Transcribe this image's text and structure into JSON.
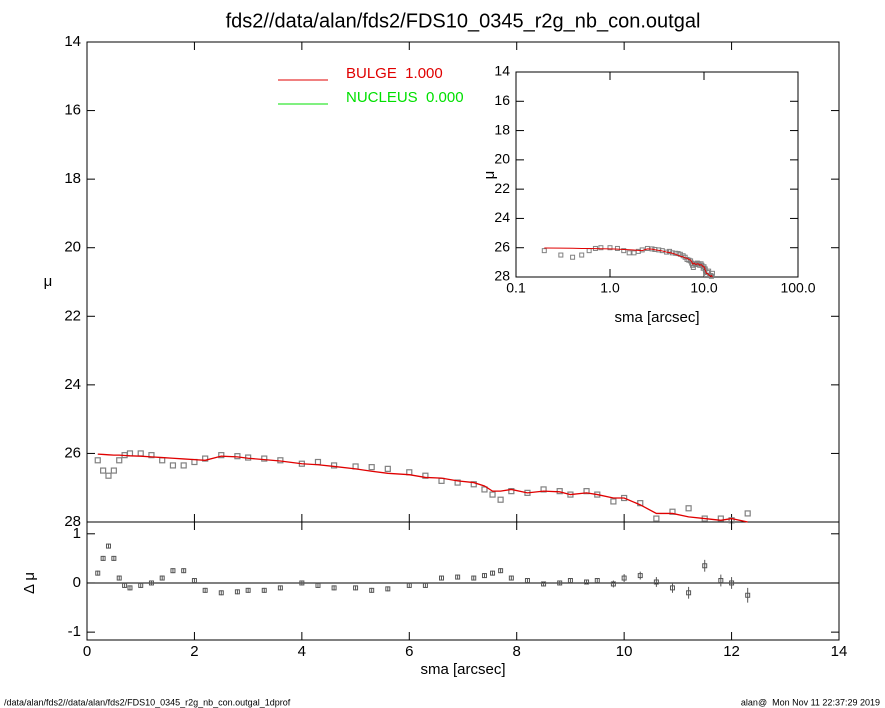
{
  "chart_data": [
    {
      "type": "scatter",
      "title": "fds2//data/alan/fds2/FDS10_0345_r2g_nb_con.outgal",
      "ylabel": "μ",
      "xlim": [
        0,
        14
      ],
      "xticks": [
        0,
        2,
        4,
        6,
        8,
        10,
        12,
        14
      ],
      "ylim": [
        28,
        14
      ],
      "yticks": [
        14,
        16,
        18,
        20,
        22,
        24,
        26,
        28
      ],
      "x": [
        0.2,
        0.3,
        0.4,
        0.5,
        0.6,
        0.7,
        0.8,
        1.0,
        1.2,
        1.4,
        1.6,
        1.8,
        2.0,
        2.2,
        2.5,
        2.8,
        3.0,
        3.3,
        3.6,
        4.0,
        4.3,
        4.6,
        5.0,
        5.3,
        5.6,
        6.0,
        6.3,
        6.6,
        6.9,
        7.2,
        7.4,
        7.55,
        7.7,
        7.9,
        8.2,
        8.5,
        8.8,
        9.0,
        9.3,
        9.5,
        9.8,
        10.0,
        10.3,
        10.6,
        10.9,
        11.2,
        11.5,
        11.8,
        12.0,
        12.3
      ],
      "points": {
        "color": "#808080",
        "values": [
          26.2,
          26.5,
          26.65,
          26.5,
          26.2,
          26.05,
          26.0,
          26.0,
          26.05,
          26.2,
          26.35,
          26.35,
          26.25,
          26.15,
          26.05,
          26.08,
          26.12,
          26.15,
          26.2,
          26.3,
          26.25,
          26.35,
          26.38,
          26.4,
          26.45,
          26.55,
          26.65,
          26.8,
          26.85,
          26.9,
          27.05,
          27.2,
          27.35,
          27.1,
          27.15,
          27.05,
          27.1,
          27.2,
          27.1,
          27.2,
          27.4,
          27.3,
          27.45,
          27.9,
          27.7,
          27.6,
          27.9,
          27.9,
          27.95,
          27.75
        ]
      },
      "series": [
        {
          "name": "BULGE  1.000",
          "color": "#e00000",
          "values": [
            26.02,
            26.03,
            26.04,
            26.05,
            26.05,
            26.06,
            26.07,
            26.08,
            26.1,
            26.12,
            26.14,
            26.16,
            26.18,
            26.2,
            26.08,
            26.1,
            26.14,
            26.18,
            26.22,
            26.3,
            26.33,
            26.38,
            26.45,
            26.52,
            26.58,
            26.62,
            26.7,
            26.72,
            26.8,
            26.85,
            26.95,
            27.1,
            27.1,
            27.05,
            27.15,
            27.1,
            27.12,
            27.2,
            27.15,
            27.2,
            27.3,
            27.3,
            27.5,
            27.75,
            27.75,
            27.85,
            27.9,
            27.95,
            27.9,
            28.0
          ]
        },
        {
          "name": "NUCLEUS  0.000",
          "color": "#00e000"
        }
      ]
    },
    {
      "type": "errorbar",
      "ylabel": "Δ μ",
      "xlabel": "sma [arcsec]",
      "ylim": [
        -1.16,
        1.24
      ],
      "yticks": [
        -1,
        0,
        1
      ],
      "values": [
        0.2,
        0.5,
        0.75,
        0.5,
        0.1,
        -0.05,
        -0.1,
        -0.05,
        0.0,
        0.1,
        0.25,
        0.25,
        0.05,
        -0.15,
        -0.2,
        -0.18,
        -0.15,
        -0.15,
        -0.1,
        0.0,
        -0.05,
        -0.1,
        -0.1,
        -0.15,
        -0.12,
        -0.05,
        -0.05,
        0.1,
        0.12,
        0.1,
        0.15,
        0.2,
        0.25,
        0.1,
        0.05,
        -0.02,
        0.0,
        0.05,
        0.02,
        0.05,
        -0.02,
        0.1,
        0.15,
        0.02,
        -0.1,
        -0.2,
        0.35,
        0.05,
        0.0,
        -0.25
      ],
      "errors": [
        0.05,
        0.05,
        0.05,
        0.05,
        0.05,
        0.05,
        0.05,
        0.05,
        0.05,
        0.05,
        0.05,
        0.05,
        0.05,
        0.05,
        0.05,
        0.05,
        0.05,
        0.05,
        0.05,
        0.05,
        0.05,
        0.05,
        0.05,
        0.05,
        0.05,
        0.05,
        0.05,
        0.05,
        0.05,
        0.05,
        0.05,
        0.05,
        0.05,
        0.05,
        0.05,
        0.05,
        0.05,
        0.05,
        0.05,
        0.05,
        0.07,
        0.08,
        0.08,
        0.1,
        0.1,
        0.12,
        0.12,
        0.12,
        0.12,
        0.15
      ]
    },
    {
      "type": "inset",
      "ylabel": "μ",
      "xlabel": "sma [arcsec]",
      "xlog": true,
      "xlim": [
        0.1,
        100
      ],
      "xticks": [
        {
          "value": 0.1,
          "label": "0.1"
        },
        {
          "value": 1,
          "label": "1.0"
        },
        {
          "value": 10,
          "label": "10.0"
        },
        {
          "value": 100,
          "label": "100.0"
        }
      ],
      "ylim": [
        28,
        14
      ],
      "yticks": [
        14,
        16,
        18,
        20,
        22,
        24,
        26,
        28
      ]
    }
  ],
  "footer": {
    "left": "/data/alan/fds2//data/alan/fds2/FDS10_0345_r2g_nb_con.outgal_1dprof",
    "right": "alan@  Mon Nov 11 22:37:29 2019"
  }
}
